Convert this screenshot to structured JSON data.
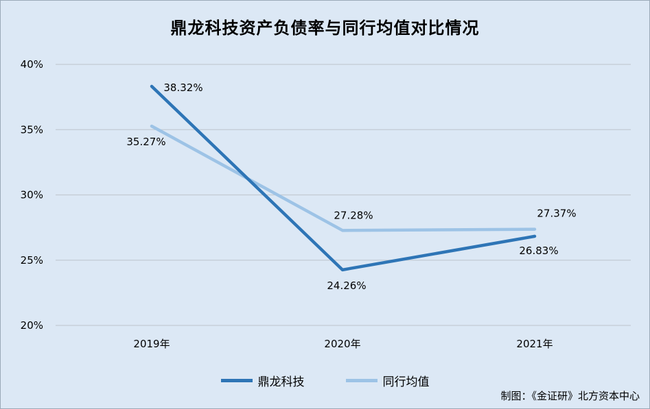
{
  "title": "鼎龙科技资产负债率与同行均值对比情况",
  "source": "制图：《金证研》北方资本中心",
  "chart_data": {
    "type": "line",
    "title": "鼎龙科技资产负债率与同行均值对比情况",
    "categories": [
      "2019年",
      "2020年",
      "2021年"
    ],
    "ylim": [
      20,
      40
    ],
    "yticks": [
      20,
      25,
      30,
      35,
      40
    ],
    "ytick_labels": [
      "20%",
      "25%",
      "30%",
      "35%",
      "40%"
    ],
    "grid": true,
    "legend_position": "bottom",
    "series": [
      {
        "name": "鼎龙科技",
        "values": [
          38.32,
          24.26,
          26.83
        ],
        "labels": [
          "38.32%",
          "24.26%",
          "26.83%"
        ],
        "color": "#2e75b6"
      },
      {
        "name": "同行均值",
        "values": [
          35.27,
          27.28,
          27.37
        ],
        "labels": [
          "35.27%",
          "27.28%",
          "27.37%"
        ],
        "color": "#9dc3e6"
      }
    ]
  }
}
